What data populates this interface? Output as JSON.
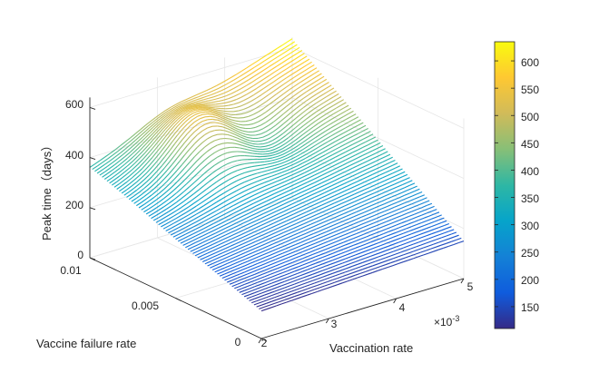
{
  "chart_data": {
    "type": "surface",
    "title": "",
    "xlabel": "Vaccination rate",
    "ylabel": "Vaccine failure rate",
    "zlabel": "Peak time（days）",
    "x_exponent_label": "×10",
    "x_exponent_value": "-3",
    "x_ticks": [
      "2",
      "3",
      "4",
      "5"
    ],
    "y_ticks": [
      "0",
      "0.005",
      "0.01"
    ],
    "z_ticks": [
      "0",
      "200",
      "400",
      "600"
    ],
    "xlim": [
      0.002,
      0.005
    ],
    "ylim": [
      0,
      0.01
    ],
    "zlim": [
      0,
      650
    ],
    "colorbar": {
      "range": [
        110,
        635
      ],
      "ticks": [
        "150",
        "200",
        "250",
        "300",
        "350",
        "400",
        "450",
        "500",
        "550",
        "600"
      ],
      "colormap": "parula"
    },
    "grid": true,
    "surface_corners": {
      "vaccination_rate": [
        0.002,
        0.005
      ],
      "vaccine_failure_rate": [
        0,
        0.01
      ],
      "peak_time_at_x2_y0": 110,
      "peak_time_at_x5_y0": 150,
      "peak_time_at_x2_y001": 360,
      "peak_time_at_x5_y001": 635
    }
  }
}
